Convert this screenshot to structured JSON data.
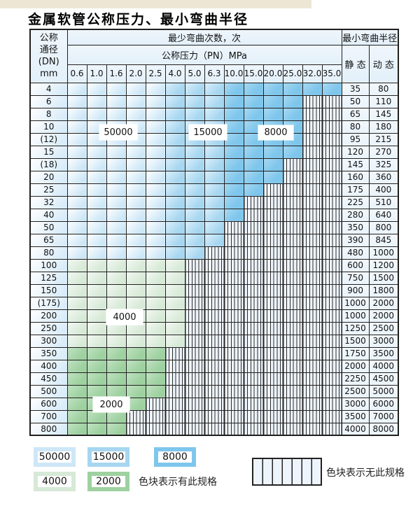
{
  "page": {
    "title": "金属软管公称压力、最小弯曲半径"
  },
  "table": {
    "header": {
      "dn_lines": [
        "公称",
        "通径",
        "(DN)",
        "mm"
      ],
      "bend_cycles_label": "最少弯曲次数，次",
      "pressure_label": "公称压力（PN）MPa",
      "pressure_columns": [
        "0.6",
        "1.0",
        "1.6",
        "2.0",
        "2.5",
        "4.0",
        "5.0",
        "6.3",
        "10.0",
        "15.0",
        "20.0",
        "25.0",
        "32.0",
        "35.0"
      ],
      "radius_label": "最小弯曲半径",
      "static_label": "静 态",
      "dynamic_label": "动 态"
    },
    "zone_split": {
      "c50000_cols": 5,
      "c15000_cols": 3
    },
    "rows": [
      {
        "dn": "4",
        "fill": "blue",
        "colored": 14,
        "static": "35",
        "dynamic": "80"
      },
      {
        "dn": "6",
        "fill": "blue",
        "colored": 12,
        "static": "50",
        "dynamic": "110"
      },
      {
        "dn": "8",
        "fill": "blue",
        "colored": 12,
        "static": "65",
        "dynamic": "145"
      },
      {
        "dn": "10",
        "fill": "blue",
        "colored": 12,
        "static": "80",
        "dynamic": "180"
      },
      {
        "dn": "(12)",
        "fill": "blue",
        "colored": 12,
        "static": "95",
        "dynamic": "215"
      },
      {
        "dn": "15",
        "fill": "blue",
        "colored": 12,
        "static": "120",
        "dynamic": "270"
      },
      {
        "dn": "(18)",
        "fill": "blue",
        "colored": 11,
        "static": "145",
        "dynamic": "325"
      },
      {
        "dn": "20",
        "fill": "blue",
        "colored": 11,
        "static": "160",
        "dynamic": "360"
      },
      {
        "dn": "25",
        "fill": "blue",
        "colored": 10,
        "static": "175",
        "dynamic": "400"
      },
      {
        "dn": "32",
        "fill": "blue",
        "colored": 9,
        "static": "225",
        "dynamic": "510"
      },
      {
        "dn": "40",
        "fill": "blue",
        "colored": 9,
        "static": "280",
        "dynamic": "640"
      },
      {
        "dn": "50",
        "fill": "blue",
        "colored": 8,
        "static": "350",
        "dynamic": "800"
      },
      {
        "dn": "65",
        "fill": "blue",
        "colored": 8,
        "static": "390",
        "dynamic": "845"
      },
      {
        "dn": "80",
        "fill": "blue",
        "colored": 7,
        "static": "480",
        "dynamic": "1000"
      },
      {
        "dn": "100",
        "fill": "green4000",
        "colored": 6,
        "static": "600",
        "dynamic": "1200"
      },
      {
        "dn": "125",
        "fill": "green4000",
        "colored": 6,
        "static": "750",
        "dynamic": "1500"
      },
      {
        "dn": "150",
        "fill": "green4000",
        "colored": 6,
        "static": "900",
        "dynamic": "1800"
      },
      {
        "dn": "(175)",
        "fill": "green4000",
        "colored": 6,
        "static": "1000",
        "dynamic": "2000"
      },
      {
        "dn": "200",
        "fill": "green4000",
        "colored": 6,
        "static": "1000",
        "dynamic": "2000"
      },
      {
        "dn": "250",
        "fill": "green4000",
        "colored": 6,
        "static": "1250",
        "dynamic": "2500"
      },
      {
        "dn": "300",
        "fill": "green4000",
        "colored": 6,
        "static": "1500",
        "dynamic": "3000"
      },
      {
        "dn": "350",
        "fill": "green2000",
        "colored": 5,
        "static": "1750",
        "dynamic": "3500"
      },
      {
        "dn": "400",
        "fill": "green2000",
        "colored": 5,
        "static": "2000",
        "dynamic": "4000"
      },
      {
        "dn": "450",
        "fill": "green2000",
        "colored": 5,
        "static": "2250",
        "dynamic": "4500"
      },
      {
        "dn": "500",
        "fill": "green2000",
        "colored": 5,
        "static": "2500",
        "dynamic": "5000"
      },
      {
        "dn": "600",
        "fill": "green2000",
        "colored": 4,
        "static": "3000",
        "dynamic": "6000"
      },
      {
        "dn": "700",
        "fill": "green2000",
        "colored": 3,
        "static": "3500",
        "dynamic": "7000"
      },
      {
        "dn": "800",
        "fill": "green2000",
        "colored": 3,
        "static": "4000",
        "dynamic": "8000"
      }
    ]
  },
  "zone_labels": {
    "l50000": "50000",
    "l15000": "15000",
    "l8000": "8000",
    "l4000": "4000",
    "l2000": "2000"
  },
  "legend": {
    "items": [
      {
        "label": "50000"
      },
      {
        "label": "15000"
      },
      {
        "label": "8000"
      },
      {
        "label": "4000"
      },
      {
        "label": "2000"
      }
    ],
    "has_spec_text": "色块表示有此规格",
    "no_spec_text": "色块表示无此规格"
  },
  "colors": {
    "c50000": "#cde7f7",
    "c15000": "#a6d6f0",
    "c8000": "#7fc6ec",
    "c4000": "#d7e9d7",
    "c2000": "#9ed1a0",
    "hatch_bg": "#eef4fb",
    "hatch_line": "#2b2b2b",
    "row_head": "#d9ecf9",
    "value_cell": "#eaf3fb",
    "header_bg": "#e3f0fa",
    "border": "#1f1f1f",
    "top_strip": "#ece6d4"
  }
}
